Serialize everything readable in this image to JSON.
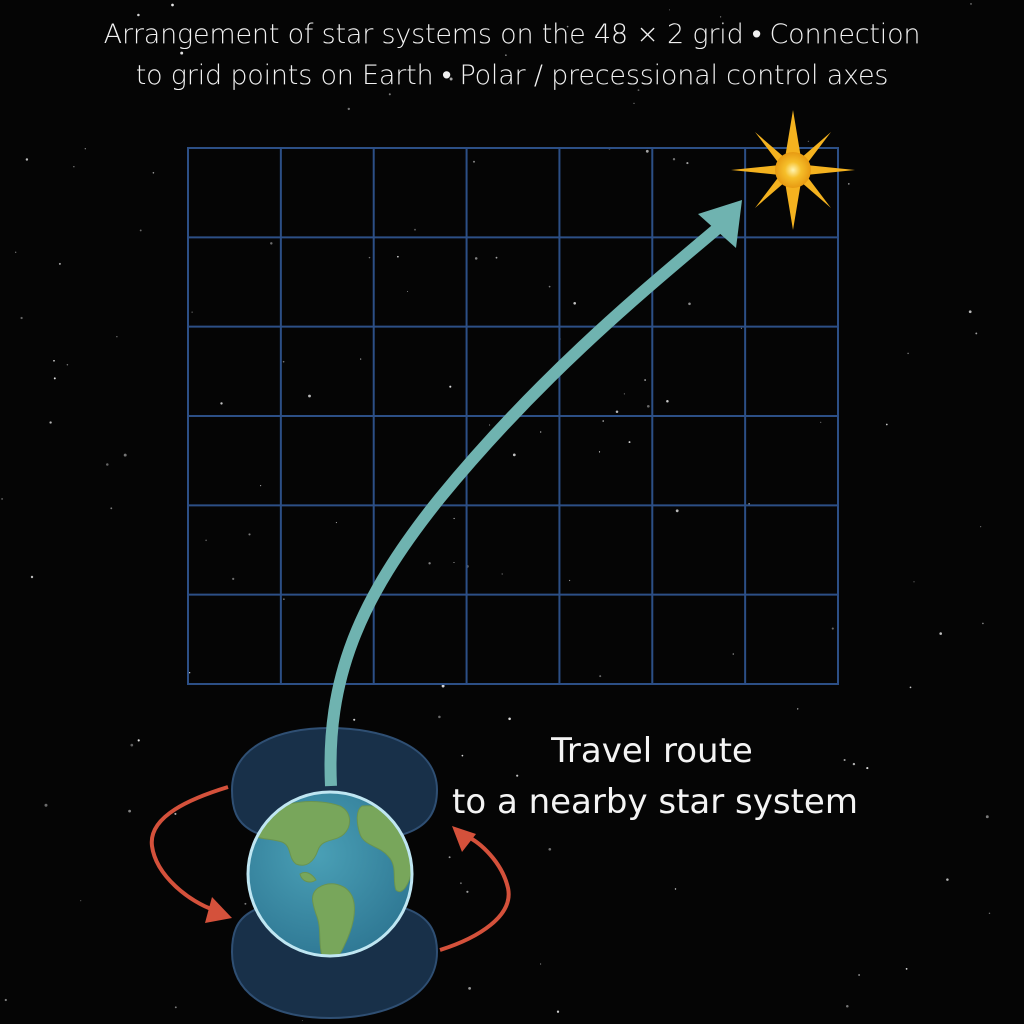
{
  "title": {
    "line1": "Arrangement of star systems on the 48 × 2 grid • Connection",
    "line2": "to grid points on Earth • Polar / precessional control axes"
  },
  "route_label": {
    "line1": "Travel route",
    "line2": "to a nearby star system"
  },
  "grid": {
    "columns": 7,
    "rows": 6
  },
  "icons": {
    "destination": "star-icon",
    "origin": "earth-globe-icon",
    "route": "route-arrow",
    "rotation": "rotation-arrow"
  },
  "colors": {
    "background": "#050505",
    "grid_line": "#2c4f86",
    "route_arrow": "#6fb3b0",
    "rotation_arrow": "#d4513b",
    "star": "#f4b21f",
    "ocean": "#3d8da7",
    "land": "#78a65b",
    "lobes": "#183049"
  }
}
